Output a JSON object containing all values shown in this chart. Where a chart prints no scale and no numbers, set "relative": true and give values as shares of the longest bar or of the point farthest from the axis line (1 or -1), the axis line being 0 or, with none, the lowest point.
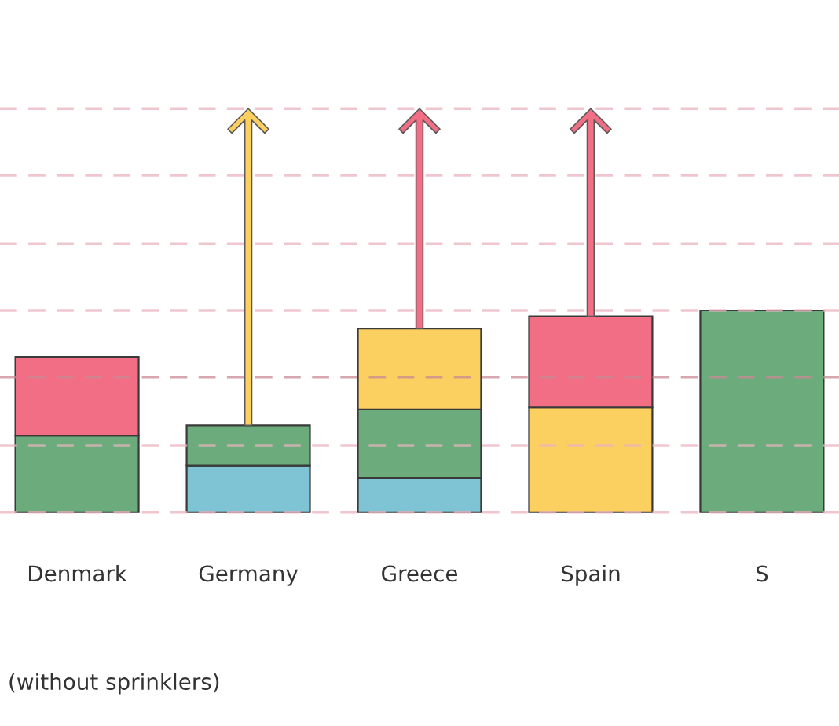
{
  "chart_data": {
    "type": "bar",
    "stacked": true,
    "relative": true,
    "categories": [
      "Denmark",
      "Germany",
      "Greece",
      "Spain",
      "S"
    ],
    "series": [
      {
        "color": "#7fc4d5",
        "values": [
          null,
          0.23,
          0.17,
          null,
          null
        ]
      },
      {
        "color": "#6cab7b",
        "values": [
          0.38,
          0.2,
          0.34,
          null,
          1.0
        ]
      },
      {
        "color": "#fbd060",
        "values": [
          null,
          null,
          0.4,
          0.52,
          null
        ]
      },
      {
        "color": "#f16e84",
        "values": [
          0.39,
          null,
          null,
          0.45,
          null
        ]
      }
    ],
    "ref_lines": [
      {
        "axis": "y",
        "value": 0,
        "color": "#e9b3bd",
        "line_style": "dashed"
      },
      {
        "axis": "y",
        "value": 0.33,
        "color": "#e9b3bd",
        "line_style": "dashed"
      },
      {
        "axis": "y",
        "value": 0.67,
        "color": "#c98994",
        "line_style": "dashed"
      },
      {
        "axis": "y",
        "value": 1.0,
        "color": "#e9b3bd",
        "line_style": "dashed"
      },
      {
        "axis": "y",
        "value": 1.33,
        "color": "#e9b3bd",
        "line_style": "dashed"
      },
      {
        "axis": "y",
        "value": 1.67,
        "color": "#e9b3bd",
        "line_style": "dashed"
      },
      {
        "axis": "y",
        "value": 2.0,
        "color": "#e9b3bd",
        "line_style": "dashed"
      }
    ],
    "annotations": [
      "(without sprinklers)"
    ]
  }
}
